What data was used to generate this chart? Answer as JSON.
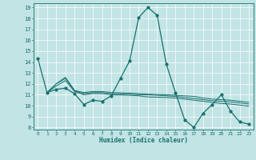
{
  "xlabel": "Humidex (Indice chaleur)",
  "xlim": [
    -0.5,
    23.5
  ],
  "ylim": [
    7.8,
    19.4
  ],
  "yticks": [
    8,
    9,
    10,
    11,
    12,
    13,
    14,
    15,
    16,
    17,
    18,
    19
  ],
  "xticks": [
    0,
    1,
    2,
    3,
    4,
    5,
    6,
    7,
    8,
    9,
    10,
    11,
    12,
    13,
    14,
    15,
    16,
    17,
    18,
    19,
    20,
    21,
    22,
    23
  ],
  "bg_color": "#c2e4e4",
  "line_color": "#1a7070",
  "grid_color": "#ffffff",
  "lines": [
    {
      "x": [
        0,
        1,
        2,
        3,
        4,
        5,
        6,
        7,
        8,
        9,
        10,
        11,
        12,
        13,
        14,
        15,
        16,
        17,
        18,
        19,
        20,
        21,
        22,
        23
      ],
      "y": [
        14.3,
        11.2,
        11.5,
        11.6,
        11.1,
        10.1,
        10.5,
        10.4,
        10.9,
        12.5,
        14.1,
        18.1,
        19.0,
        18.3,
        13.8,
        11.2,
        8.7,
        8.0,
        9.3,
        10.1,
        11.0,
        9.5,
        8.5,
        8.3
      ],
      "marker": true
    },
    {
      "x": [
        1,
        2,
        3,
        4,
        5,
        6,
        7,
        8,
        10,
        11,
        12,
        14,
        15,
        16,
        17,
        18,
        19,
        20,
        21,
        22,
        23
      ],
      "y": [
        11.2,
        12.0,
        12.6,
        11.4,
        11.2,
        11.3,
        11.3,
        11.2,
        11.15,
        11.1,
        11.05,
        11.0,
        10.95,
        10.9,
        10.85,
        10.7,
        10.6,
        10.55,
        10.5,
        10.4,
        10.3
      ],
      "marker": false
    },
    {
      "x": [
        1,
        2,
        3,
        4,
        5,
        6,
        7,
        8,
        10,
        11,
        12,
        14,
        15,
        16,
        17,
        18,
        19,
        20,
        21,
        22,
        23
      ],
      "y": [
        11.2,
        12.0,
        12.5,
        11.35,
        11.1,
        11.2,
        11.2,
        11.1,
        11.05,
        11.0,
        11.0,
        10.9,
        10.85,
        10.75,
        10.65,
        10.55,
        10.45,
        10.4,
        10.35,
        10.25,
        10.15
      ],
      "marker": false
    },
    {
      "x": [
        1,
        2,
        3,
        4,
        5,
        6,
        7,
        8,
        10,
        11,
        12,
        14,
        15,
        16,
        17,
        18,
        19,
        20,
        21,
        22,
        23
      ],
      "y": [
        11.2,
        11.8,
        12.3,
        11.3,
        11.0,
        11.1,
        11.1,
        11.0,
        10.95,
        10.9,
        10.8,
        10.75,
        10.7,
        10.6,
        10.5,
        10.4,
        10.3,
        10.2,
        10.15,
        10.05,
        9.95
      ],
      "marker": false
    }
  ]
}
